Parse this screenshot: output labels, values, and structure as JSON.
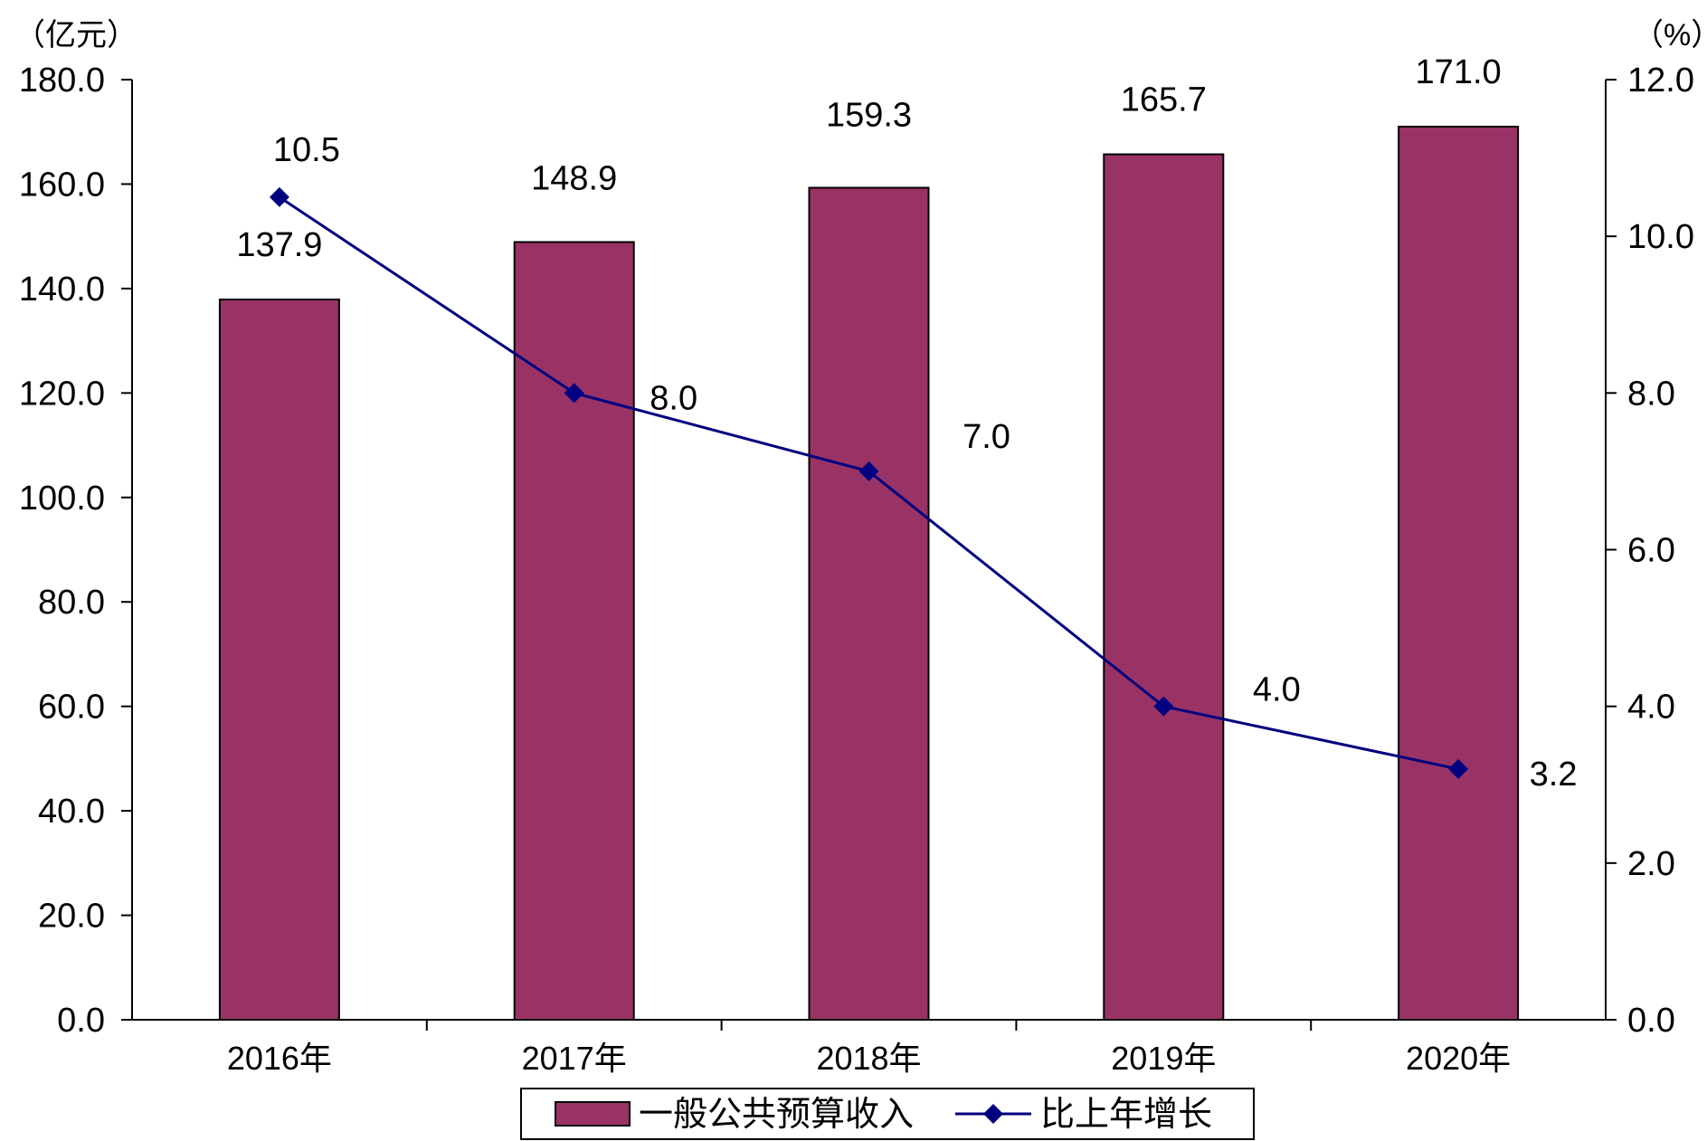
{
  "chart_data": {
    "type": "bar",
    "categories": [
      "2016年",
      "2017年",
      "2018年",
      "2019年",
      "2020年"
    ],
    "left_axis": {
      "unit": "（亿元）",
      "range": [
        0,
        180
      ],
      "ticks": [
        "0.0",
        "20.0",
        "40.0",
        "60.0",
        "80.0",
        "100.0",
        "120.0",
        "140.0",
        "160.0",
        "180.0"
      ]
    },
    "right_axis": {
      "unit": "（%）",
      "range": [
        0,
        12
      ],
      "ticks": [
        "0.0",
        "2.0",
        "4.0",
        "6.0",
        "8.0",
        "10.0",
        "12.0"
      ]
    },
    "series": [
      {
        "name": "一般公共预算收入",
        "type": "bar",
        "axis": "left",
        "color": "#993366",
        "values": [
          137.9,
          148.9,
          159.3,
          165.7,
          171.0
        ],
        "labels": [
          "137.9",
          "148.9",
          "159.3",
          "165.7",
          "171.0"
        ]
      },
      {
        "name": "比上年增长",
        "type": "line",
        "axis": "right",
        "color": "#000080",
        "marker": "diamond",
        "values": [
          10.5,
          8.0,
          7.0,
          4.0,
          3.2
        ],
        "labels": [
          "10.5",
          "8.0",
          "7.0",
          "4.0",
          "3.2"
        ]
      }
    ],
    "grid": false,
    "legend": "bottom"
  }
}
